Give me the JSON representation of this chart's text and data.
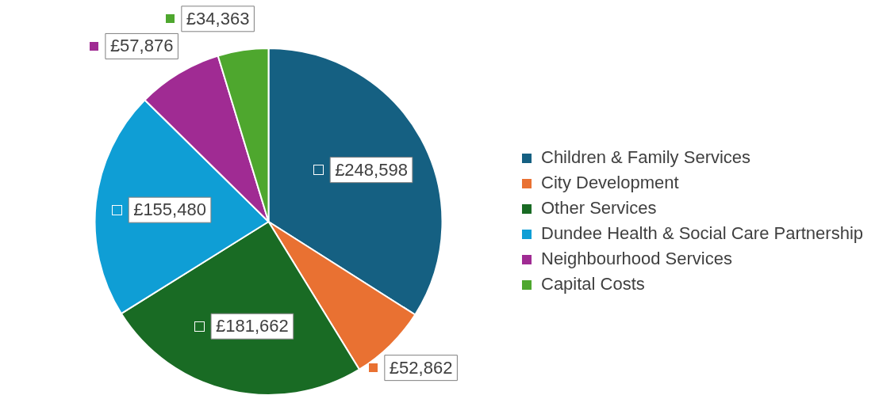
{
  "chart_data": {
    "type": "pie",
    "categories": [
      "Children & Family Services",
      "City Development",
      "Other Services",
      "Dundee Health & Social Care Partnership",
      "Neighbourhood Services",
      "Capital Costs"
    ],
    "values": [
      248598,
      52862,
      181662,
      155480,
      57876,
      34363
    ],
    "value_labels": [
      "£248,598",
      "£52,862",
      "£181,662",
      "£155,480",
      "£57,876",
      "£34,363"
    ],
    "colors": [
      "#156082",
      "#e97132",
      "#196b24",
      "#0f9ed5",
      "#a02b93",
      "#4ea72e"
    ],
    "legend": "right"
  }
}
